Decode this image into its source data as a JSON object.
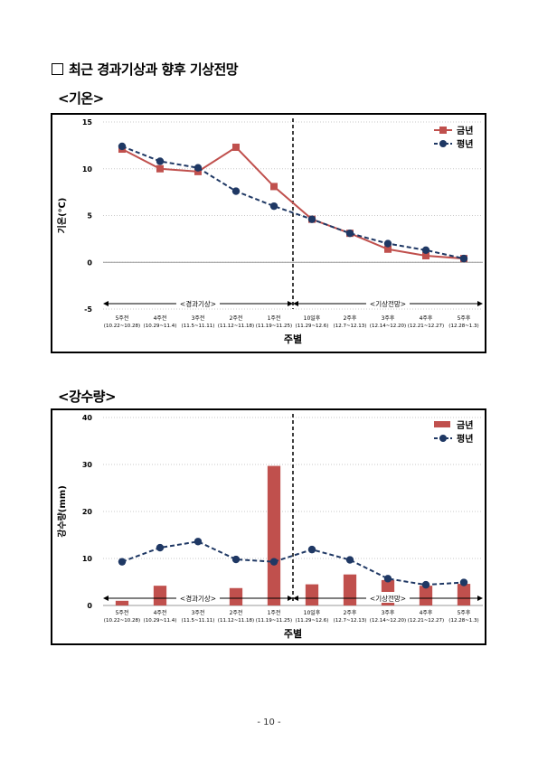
{
  "heading": "최근 경과기상과 향후 기상전망",
  "page_number": "- 10 -",
  "chart_data": [
    {
      "type": "line",
      "section_label": "<기온>",
      "ylabel": "기온(℃)",
      "xlabel": "주별",
      "ylim": [
        -5,
        15
      ],
      "yticks": [
        -5,
        0,
        5,
        10,
        15
      ],
      "grid": true,
      "legend": "top-right",
      "categories": [
        {
          "week": "5주전",
          "dates": "(10.22~10.28)"
        },
        {
          "week": "4주전",
          "dates": "(10.29~11.4)"
        },
        {
          "week": "3주전",
          "dates": "(11.5~11.11)"
        },
        {
          "week": "2주전",
          "dates": "(11.12~11.18)"
        },
        {
          "week": "1주전",
          "dates": "(11.19~11.25)"
        },
        {
          "week": "10일후",
          "dates": "(11.29~12.6)"
        },
        {
          "week": "2주후",
          "dates": "(12.7~12.13)"
        },
        {
          "week": "3주후",
          "dates": "(12.14~12.20)"
        },
        {
          "week": "4주후",
          "dates": "(12.21~12.27)"
        },
        {
          "week": "5주후",
          "dates": "(12.28~1.3)"
        }
      ],
      "series": [
        {
          "name": "금년",
          "color": "#c0504d",
          "marker": "square",
          "style": "solid",
          "values": [
            12.1,
            10.0,
            9.7,
            12.3,
            8.1,
            4.6,
            3.1,
            1.4,
            0.7,
            0.4
          ]
        },
        {
          "name": "평년",
          "color": "#1f3864",
          "marker": "circle",
          "style": "dashed",
          "values": [
            12.4,
            10.8,
            10.1,
            7.6,
            6.0,
            4.6,
            3.1,
            2.0,
            1.3,
            0.4
          ]
        }
      ],
      "annotations": {
        "past": "<경과기상>",
        "forecast": "<기상전망>"
      }
    },
    {
      "type": "bar",
      "section_label": "<강수량>",
      "ylabel": "강수량(mm)",
      "xlabel": "주별",
      "ylim": [
        0,
        40
      ],
      "yticks": [
        0,
        10,
        20,
        30,
        40
      ],
      "grid": true,
      "legend": "top-right",
      "categories": [
        {
          "week": "5주전",
          "dates": "(10.22~10.28)"
        },
        {
          "week": "4주전",
          "dates": "(10.29~11.4)"
        },
        {
          "week": "3주전",
          "dates": "(11.5~11.11)"
        },
        {
          "week": "2주전",
          "dates": "(11.12~11.18)"
        },
        {
          "week": "1주전",
          "dates": "(11.19~11.25)"
        },
        {
          "week": "10일후",
          "dates": "(11.29~12.6)"
        },
        {
          "week": "2주후",
          "dates": "(12.7~12.13)"
        },
        {
          "week": "3주후",
          "dates": "(12.14~12.20)"
        },
        {
          "week": "4주후",
          "dates": "(12.21~12.27)"
        },
        {
          "week": "5주후",
          "dates": "(12.28~1.3)"
        }
      ],
      "series": [
        {
          "name": "금년",
          "color": "#c0504d",
          "kind": "bar",
          "values": [
            1.0,
            4.2,
            0.0,
            3.7,
            29.7,
            4.5,
            6.6,
            5.4,
            4.2,
            4.6
          ]
        },
        {
          "name": "평년",
          "color": "#1f3864",
          "kind": "line",
          "marker": "circle",
          "style": "dashed",
          "values": [
            9.3,
            12.3,
            13.6,
            9.8,
            9.3,
            11.9,
            9.7,
            5.7,
            4.4,
            4.9
          ]
        }
      ],
      "annotations": {
        "past": "<경과기상>",
        "forecast": "<기상전망>"
      }
    }
  ]
}
